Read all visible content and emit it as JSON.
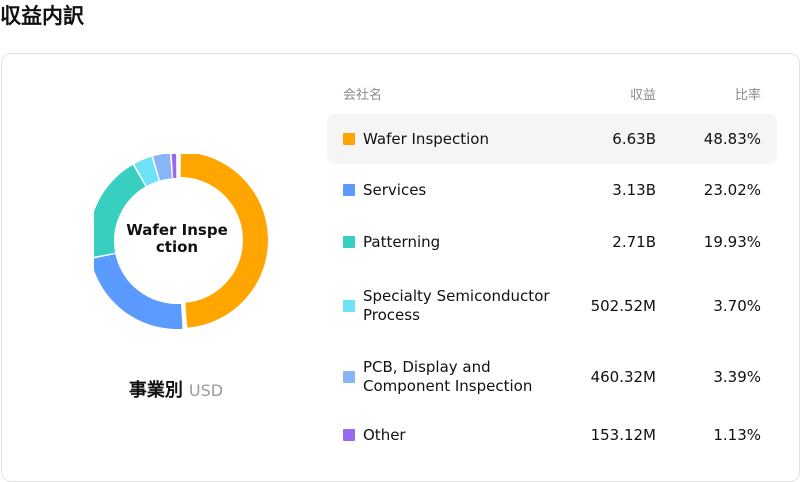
{
  "page": {
    "title": "収益内訳"
  },
  "donut": {
    "center_label": "Wafer Inspection"
  },
  "breakdown": {
    "label": "事業別",
    "unit": "USD"
  },
  "table": {
    "headers": {
      "name": "会社名",
      "revenue": "収益",
      "ratio": "比率"
    },
    "rows": [
      {
        "name": "Wafer Inspection",
        "revenue": "6.63B",
        "ratio": "48.83%",
        "color": "#FFA500",
        "highlighted": true
      },
      {
        "name": "Services",
        "revenue": "3.13B",
        "ratio": "23.02%",
        "color": "#5B9BFF",
        "highlighted": false
      },
      {
        "name": "Patterning",
        "revenue": "2.71B",
        "ratio": "19.93%",
        "color": "#36CFC0",
        "highlighted": false
      },
      {
        "name": "Specialty Semiconductor Process",
        "revenue": "502.52M",
        "ratio": "3.70%",
        "color": "#6EE3F7",
        "highlighted": false
      },
      {
        "name": "PCB, Display and Component Inspection",
        "revenue": "460.32M",
        "ratio": "3.39%",
        "color": "#88B4F8",
        "highlighted": false
      },
      {
        "name": "Other",
        "revenue": "153.12M",
        "ratio": "1.13%",
        "color": "#9B68F2",
        "highlighted": false
      }
    ]
  },
  "chart_data": {
    "type": "pie",
    "categories": [
      "Wafer Inspection",
      "Services",
      "Patterning",
      "Specialty Semiconductor Process",
      "PCB, Display and Component Inspection",
      "Other"
    ],
    "values": [
      48.83,
      23.02,
      19.93,
      3.7,
      3.39,
      1.13
    ],
    "colors": [
      "#FFA500",
      "#5B9BFF",
      "#36CFC0",
      "#6EE3F7",
      "#88B4F8",
      "#9B68F2"
    ]
  }
}
